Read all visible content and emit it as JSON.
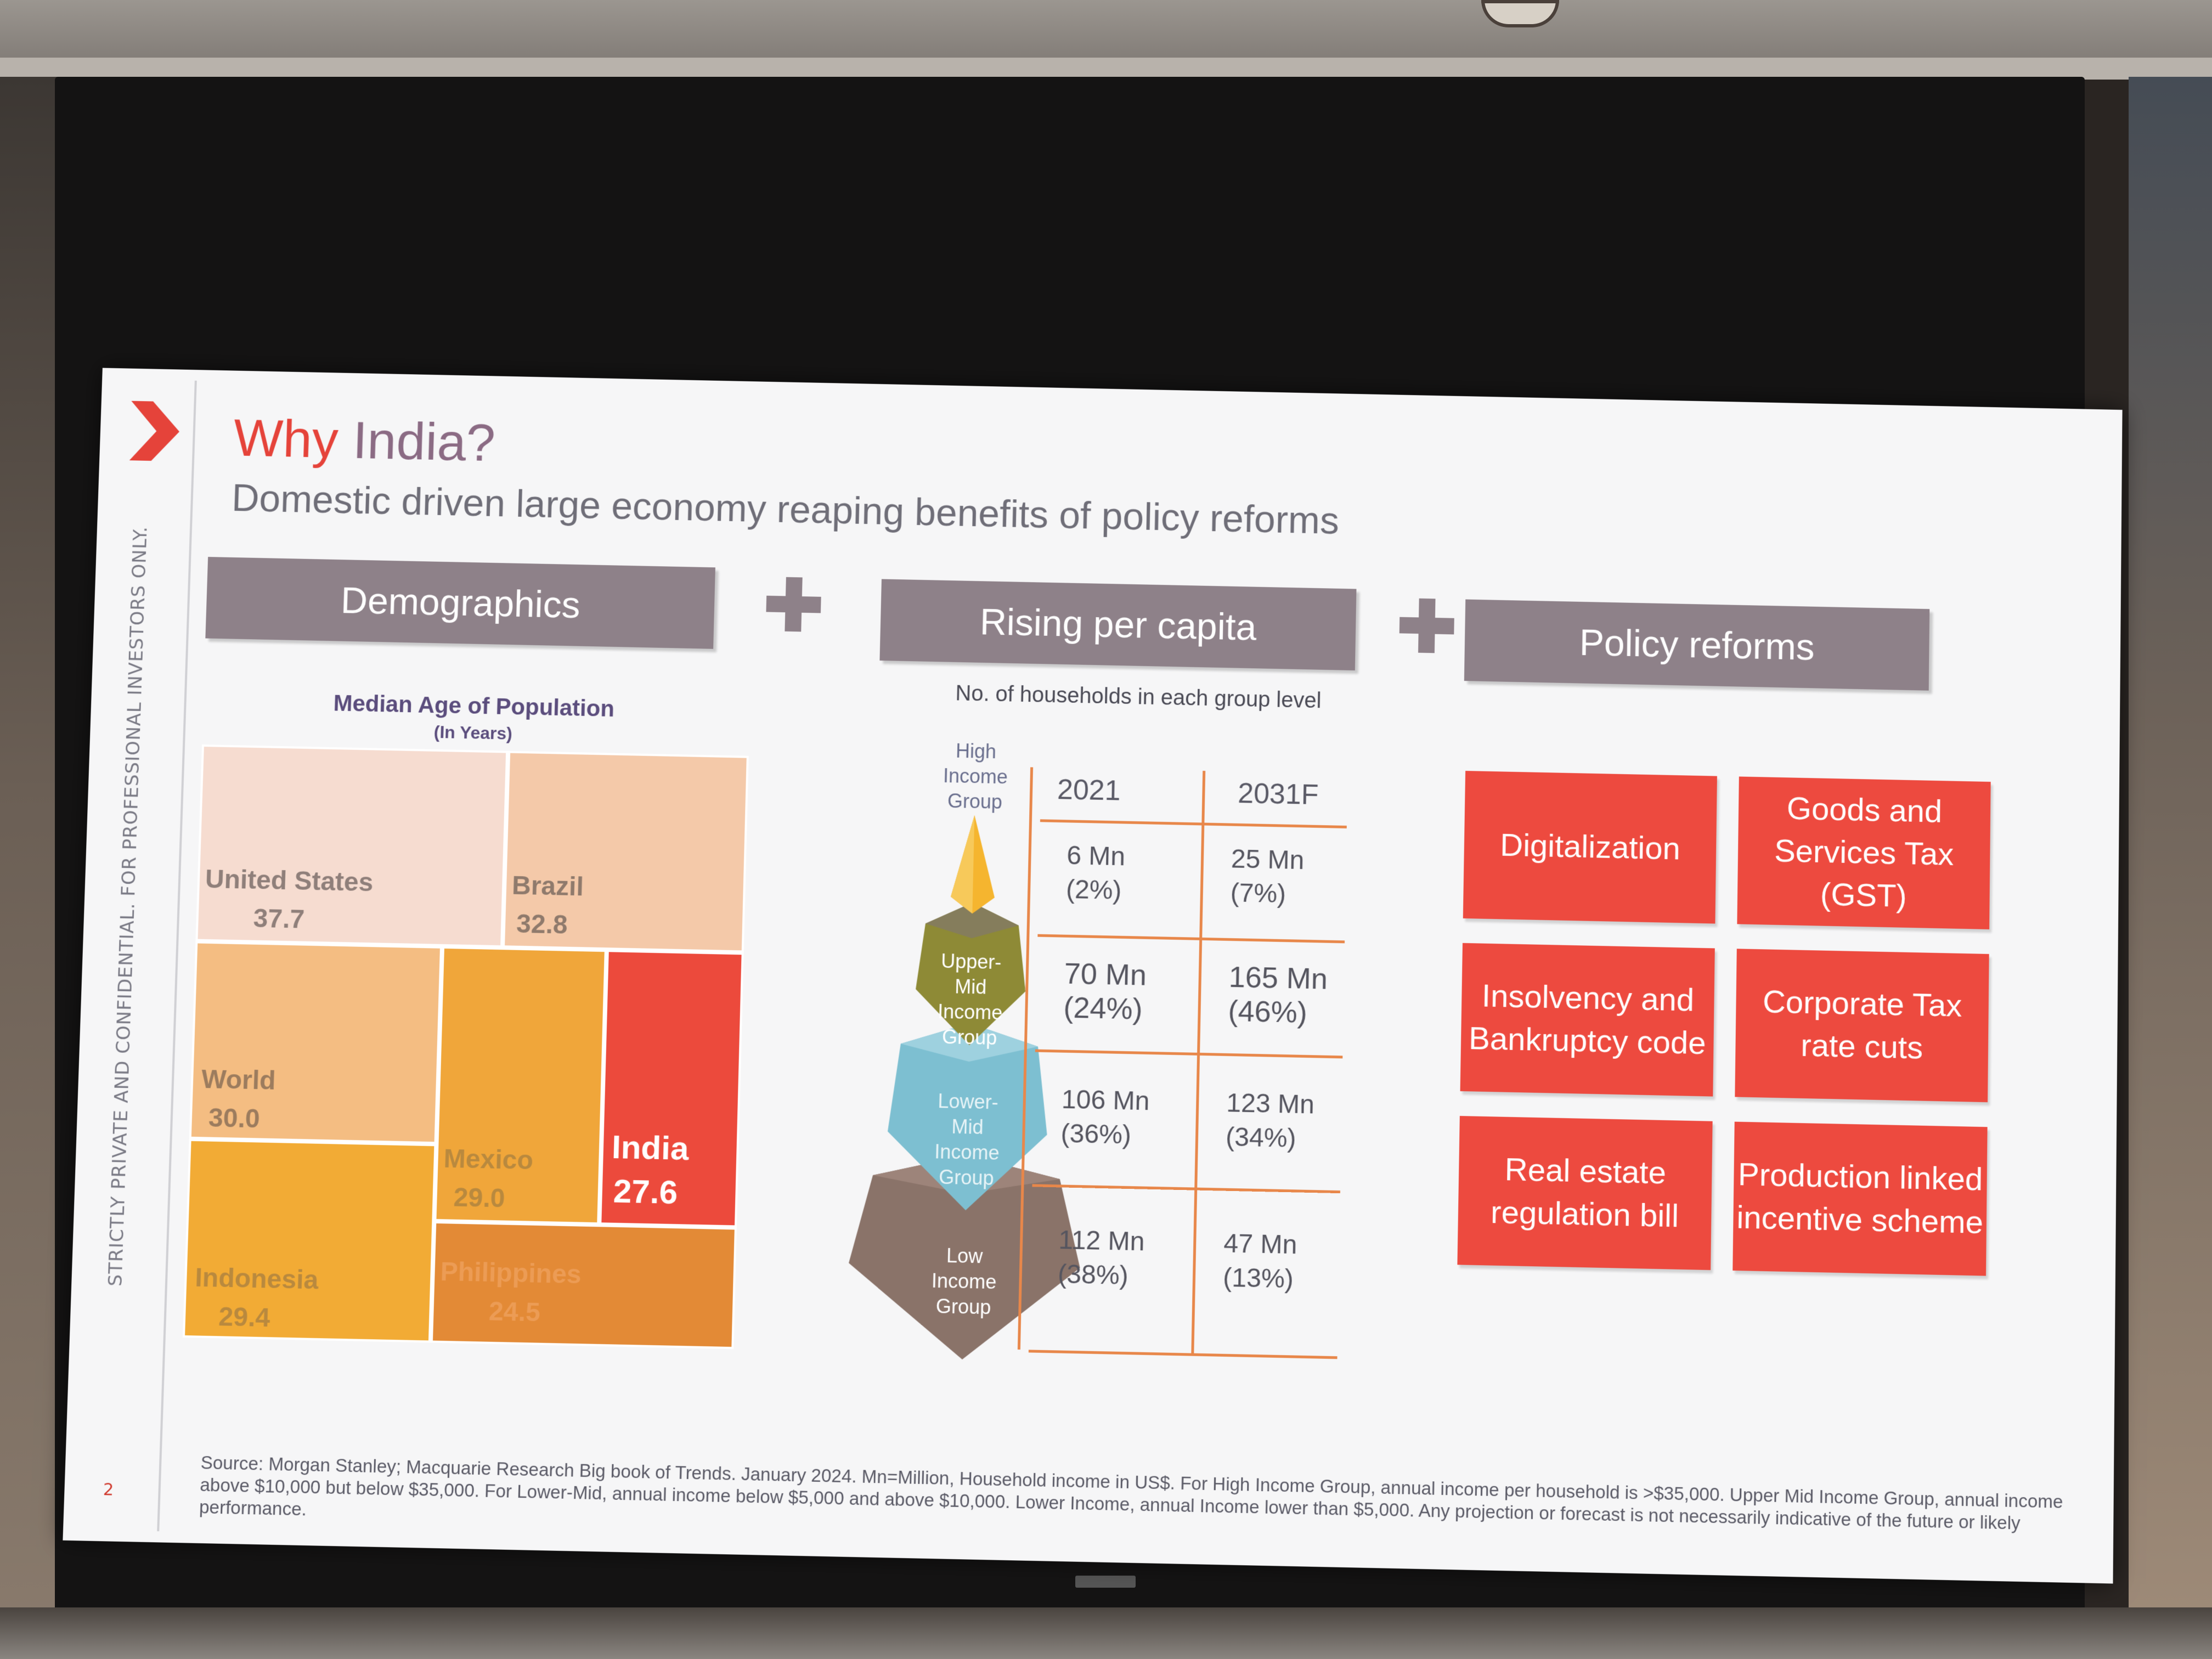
{
  "slide": {
    "title_part1": "Why",
    "title_part2": "India?",
    "subtitle": "Domestic driven large economy reaping benefits of policy reforms",
    "side_note": "STRICTLY PRIVATE AND CONFIDENTIAL. FOR PROFESSIONAL INVESTORS ONLY.",
    "page_number": "2",
    "source": "Source: Morgan Stanley; Macquarie Research Big book of Trends. January 2024. Mn=Million, Household income in US$. For High Income Group, annual income per household is >$35,000. Upper Mid Income Group, annual income above $10,000 but below $35,000. For Lower-Mid, annual income below $5,000 and above $10,000. Lower Income, annual Income lower than $5,000. Any projection or forecast is not necessarily indicative of the future or likely performance."
  },
  "sections": {
    "demographics": "Demographics",
    "per_capita": "Rising per capita",
    "policy": "Policy reforms"
  },
  "demographics": {
    "chart_title": "Median Age of Population",
    "chart_subtitle": "(In Years)",
    "tiles": [
      {
        "name": "United States",
        "value": "37.7",
        "color": "#f6dcd0"
      },
      {
        "name": "Brazil",
        "value": "32.8",
        "color": "#f4c9a9"
      },
      {
        "name": "World",
        "value": "30.0",
        "color": "#f4bd82"
      },
      {
        "name": "Mexico",
        "value": "29.0",
        "color": "#f0a63a"
      },
      {
        "name": "India",
        "value": "27.6",
        "color": "#ec4a3c"
      },
      {
        "name": "Indonesia",
        "value": "29.4",
        "color": "#f2ab35"
      },
      {
        "name": "Philippines",
        "value": "24.5",
        "color": "#e38a36"
      }
    ]
  },
  "households": {
    "note": "No. of households in each group level",
    "columns": [
      "2021",
      "2031F"
    ],
    "groups": [
      {
        "label": "High\nIncome\nGroup",
        "v2021": "6 Mn\n(2%)",
        "v2031": "25 Mn\n(7%)"
      },
      {
        "label": "Upper-\nMid\nIncome\nGroup",
        "v2021": "70 Mn\n(24%)",
        "v2031": "165 Mn\n(46%)"
      },
      {
        "label": "Lower-\nMid\nIncome\nGroup",
        "v2021": "106 Mn\n(36%)",
        "v2031": "123 Mn\n(34%)"
      },
      {
        "label": "Low\nIncome\nGroup",
        "v2021": "112 Mn\n(38%)",
        "v2031": "47 Mn\n(13%)"
      }
    ]
  },
  "reforms": [
    "Digitalization",
    "Goods and Services Tax (GST)",
    "Insolvency and Bankruptcy code",
    "Corporate Tax rate cuts",
    "Real estate regulation bill",
    "Production linked incentive scheme"
  ],
  "colors": {
    "accent_red": "#ed4a3f",
    "header_mauve": "#8e8189",
    "table_lines": "#e8874a"
  }
}
